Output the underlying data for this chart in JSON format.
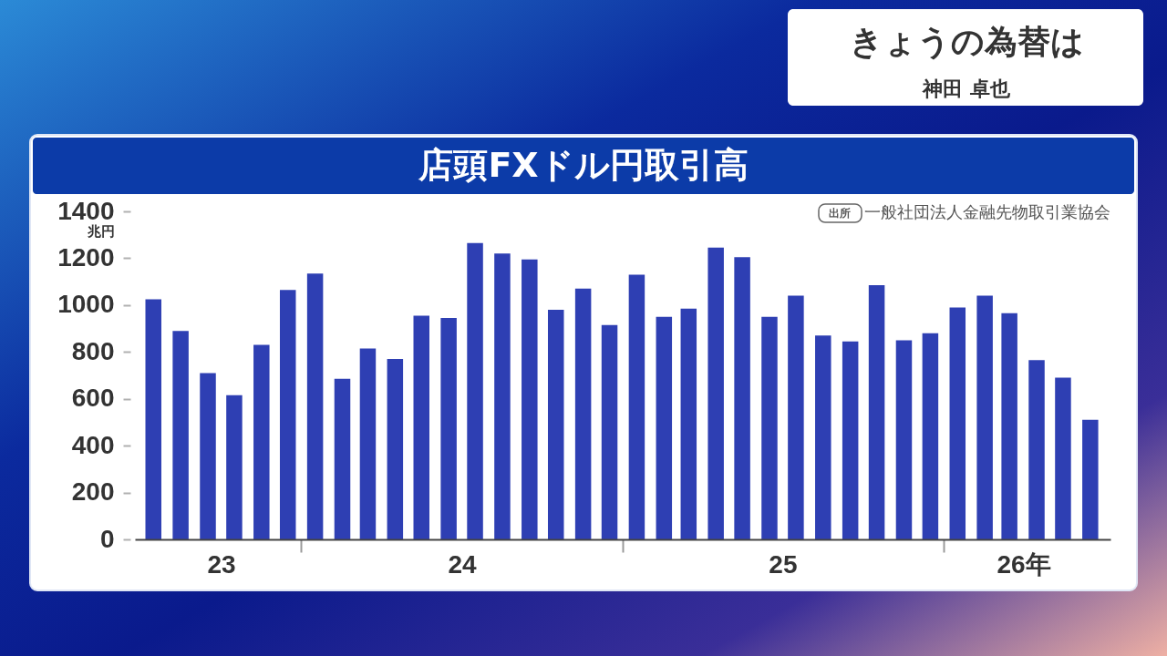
{
  "chart_data": {
    "type": "bar",
    "title": "店頭FXドル円取引高",
    "ylabel": "兆円",
    "x": [
      "2023-07",
      "2023-08",
      "2023-09",
      "2023-10",
      "2023-11",
      "2023-12",
      "2024-01",
      "2024-02",
      "2024-03",
      "2024-04",
      "2024-05",
      "2024-06",
      "2024-07",
      "2024-08",
      "2024-09",
      "2024-10",
      "2024-11",
      "2024-12",
      "2025-01",
      "2025-02",
      "2025-03",
      "2025-04",
      "2025-05",
      "2025-06",
      "2025-07",
      "2025-08",
      "2025-09",
      "2025-10",
      "2025-11",
      "2025-12",
      "2026-01",
      "2026-02",
      "2026-03",
      "2026-04",
      "2026-05",
      "2026-06"
    ],
    "values": [
      1025,
      890,
      710,
      615,
      830,
      1065,
      1135,
      685,
      815,
      770,
      955,
      945,
      1265,
      1220,
      1195,
      980,
      1070,
      915,
      1130,
      950,
      985,
      1245,
      1205,
      950,
      1040,
      870,
      845,
      1085,
      850,
      880,
      990,
      1040,
      965,
      765,
      690,
      510
    ],
    "color": "#2e3fb3",
    "xlim": [
      "2023-06-10",
      "2026-06-24"
    ],
    "xticks": [
      {
        "value": "2023-09-16",
        "label": "23"
      },
      {
        "value": "2023-12-16",
        "label": null
      },
      {
        "value": "2024-06-16",
        "label": "24"
      },
      {
        "value": "2024-12-16",
        "label": null
      },
      {
        "value": "2025-06-16",
        "label": "25"
      },
      {
        "value": "2025-12-16",
        "label": null
      },
      {
        "value": "2026-03-17",
        "label": "26年"
      }
    ],
    "ylim": [
      0,
      1400
    ],
    "yticks": [
      0,
      200,
      400,
      600,
      800,
      1000,
      1200,
      1400
    ],
    "annotations": [
      "出所",
      "一般社団法人金融先物取引業協会",
      "きょうの為替は",
      "神田 卓也"
    ]
  }
}
